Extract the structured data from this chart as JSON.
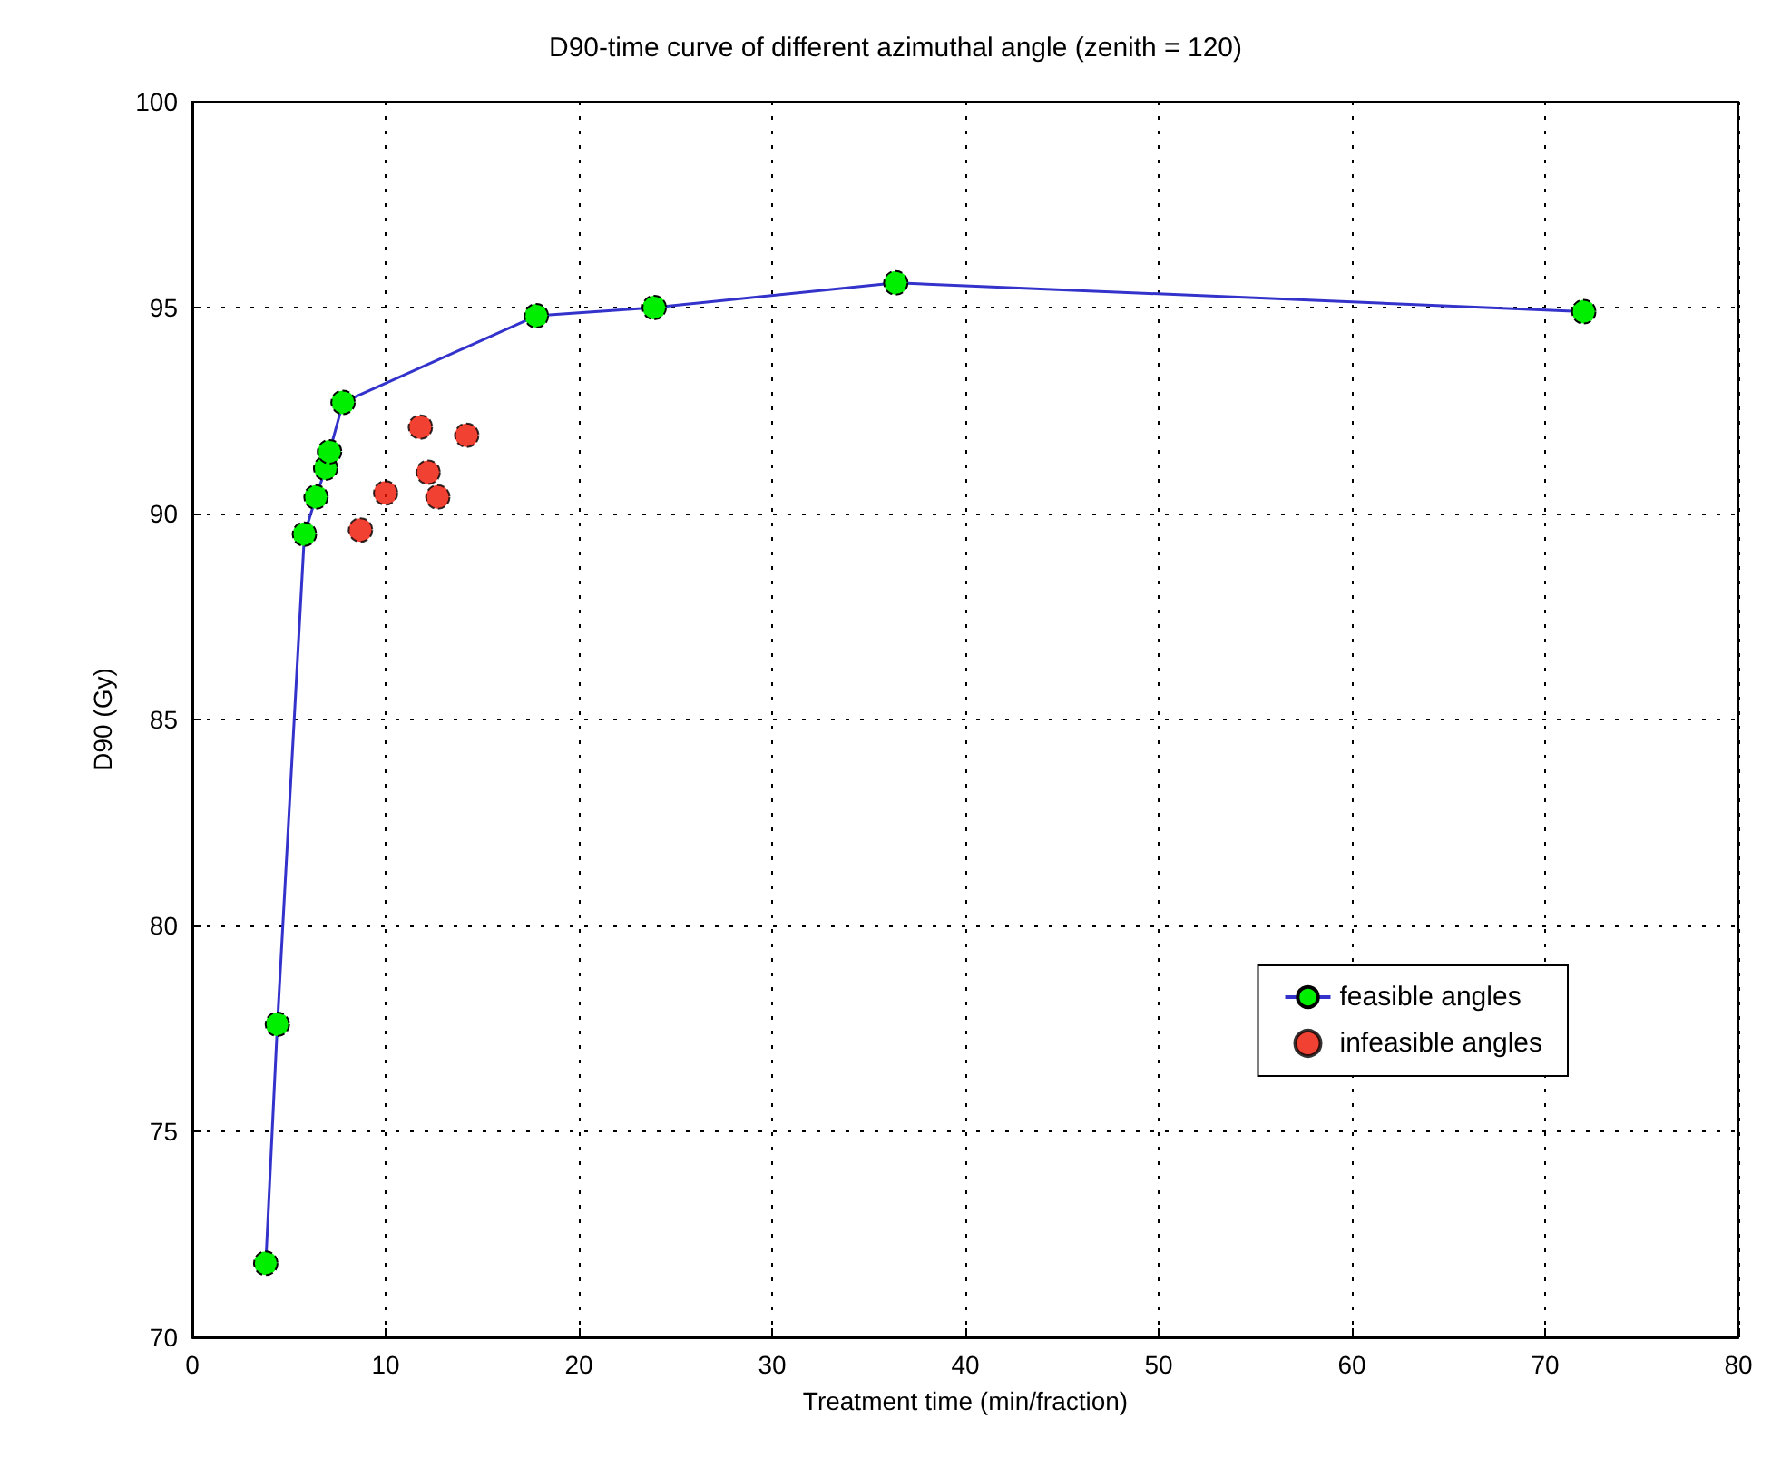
{
  "chart_data": {
    "type": "line",
    "title": "D90-time curve of different azimuthal angle (zenith = 120)",
    "xlabel": "Treatment time (min/fraction)",
    "ylabel": "D90 (Gy)",
    "series": [
      {
        "name": "feasible angles",
        "color": "#3333cc",
        "colors": [
          "#00ee00",
          "#00ee00",
          "#00ee00",
          "#00ee00",
          "#00ee00",
          "#00ee00",
          "#00ee00",
          "#00ee00",
          "#00ee00",
          "#00ee00",
          "#00ee00"
        ],
        "x": [
          3.8,
          4.4,
          5.8,
          6.4,
          6.9,
          7.1,
          7.8,
          17.8,
          23.9,
          36.4,
          72
        ],
        "values": [
          71.8,
          77.6,
          89.5,
          90.4,
          91.1,
          91.5,
          92.7,
          94.8,
          95.0,
          95.6,
          94.9
        ]
      },
      {
        "name": "infeasible angles",
        "type": "scatter",
        "color": "#ee1100",
        "x": [
          8.7,
          10.0,
          11.8,
          12.2,
          12.7,
          14.2
        ],
        "values": [
          89.6,
          90.5,
          92.1,
          91.0,
          90.4,
          91.9
        ]
      }
    ],
    "xlim": [
      0,
      80
    ],
    "xticks": [
      0,
      10,
      20,
      30,
      40,
      50,
      60,
      70,
      80
    ],
    "ylim": [
      70,
      100
    ],
    "yticks": [
      70,
      75,
      80,
      85,
      90,
      95,
      100
    ],
    "grid": true,
    "legend": "bottom right",
    "marker": "circle"
  }
}
